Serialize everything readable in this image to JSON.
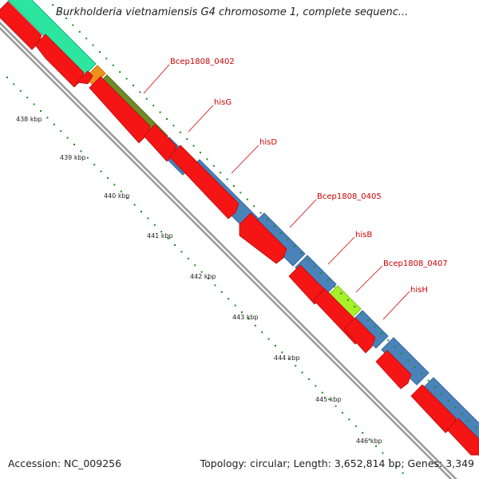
{
  "header": {
    "title": "Burkholderia vietnamiensis G4 chromosome 1, complete sequenc..."
  },
  "footer": {
    "accession": "Accession: NC_009256",
    "topology": "Topology: circular; Length: 3,652,814 bp; Genes: 3,349"
  },
  "colors": {
    "cds_red": "#f51515",
    "outline_green": "#2ce6a0",
    "orange": "#f0901a",
    "olive": "#6f8b26",
    "steelblue": "#4a82ba",
    "lime": "#a7f02b",
    "backbone": "#999999",
    "tick_green": "#1a8a1a",
    "label_red": "#cc0000"
  },
  "scale": {
    "unit": "kbp",
    "positions": [
      438,
      439,
      440,
      441,
      442,
      443,
      444,
      445,
      446
    ]
  },
  "scale_labels": [
    "438 kbp",
    "439 kbp",
    "440 kbp",
    "441 kbp",
    "442 kbp",
    "443 kbp",
    "444 kbp",
    "445 kbp",
    "446 kbp"
  ],
  "gene_labels": [
    "Bcep1808_0402",
    "hisG",
    "hisD",
    "Bcep1808_0405",
    "hisB",
    "Bcep1808_0407",
    "hisH"
  ]
}
